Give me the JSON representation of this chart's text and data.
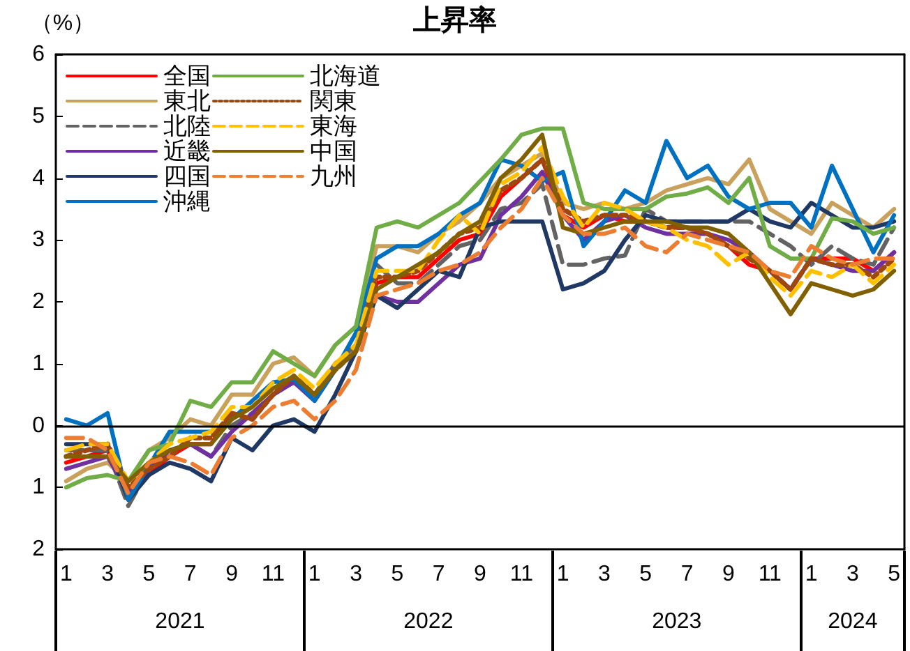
{
  "chart_data": {
    "type": "line",
    "title": "上昇率",
    "ylabel": "（%）",
    "categories": [
      "1",
      null,
      "3",
      null,
      "5",
      null,
      "7",
      null,
      "9",
      null,
      "11",
      null,
      "1",
      null,
      "3",
      null,
      "5",
      null,
      "7",
      null,
      "9",
      null,
      "11",
      null,
      "1",
      null,
      "3",
      null,
      "5",
      null,
      "7",
      null,
      "9",
      null,
      "11",
      null,
      "1",
      null,
      "3",
      null,
      "5"
    ],
    "annotations": [
      "2021",
      "2022",
      "2023",
      "2024"
    ],
    "ylim": [
      -2,
      6
    ],
    "yticks": [
      {
        "value": -2,
        "label": "2"
      },
      {
        "value": -1,
        "label": "1"
      },
      0,
      1,
      2,
      3,
      4,
      5,
      6
    ],
    "grid": false,
    "legend": "top left",
    "marker": "none",
    "ref_lines": [
      {
        "axis": "y",
        "value": 0
      }
    ],
    "series": [
      {
        "name": "全国",
        "color": "#ff0000",
        "line_style": "solid",
        "values": [
          -0.6,
          -0.5,
          -0.4,
          -1.1,
          -0.8,
          -0.5,
          -0.3,
          -0.3,
          0.2,
          0.1,
          0.5,
          0.8,
          0.5,
          0.9,
          1.2,
          2.3,
          2.4,
          2.4,
          2.7,
          3.0,
          3.1,
          3.7,
          4.0,
          4.3,
          3.4,
          3.2,
          3.4,
          3.3,
          3.3,
          3.2,
          3.2,
          3.1,
          2.9,
          2.6,
          2.5,
          2.2,
          2.7,
          2.7,
          2.7,
          2.5,
          2.8
        ]
      },
      {
        "name": "東北",
        "color": "#c9a15c",
        "line_style": "solid",
        "values": [
          -0.9,
          -0.7,
          -0.6,
          -0.9,
          -0.4,
          -0.2,
          0.1,
          0.0,
          0.5,
          0.5,
          1.0,
          1.1,
          0.8,
          1.3,
          1.6,
          2.9,
          2.9,
          2.8,
          3.1,
          3.3,
          3.6,
          4.0,
          4.2,
          4.4,
          3.6,
          3.5,
          3.6,
          3.5,
          3.6,
          3.8,
          3.9,
          4.0,
          3.9,
          4.3,
          3.5,
          3.3,
          3.1,
          3.6,
          3.4,
          3.2,
          3.5
        ]
      },
      {
        "name": "北陸",
        "color": "#636363",
        "line_style": "dashed",
        "values": [
          -0.4,
          -0.4,
          -0.4,
          -1.3,
          -0.7,
          -0.4,
          -0.3,
          -0.5,
          0.0,
          0.2,
          0.5,
          0.7,
          0.5,
          1.0,
          1.3,
          2.6,
          2.3,
          2.3,
          2.6,
          2.9,
          3.0,
          3.5,
          3.6,
          3.9,
          2.6,
          2.6,
          2.7,
          2.75,
          3.5,
          3.3,
          3.3,
          3.3,
          3.3,
          3.3,
          3.1,
          2.9,
          2.6,
          2.9,
          2.7,
          2.6,
          3.2
        ]
      },
      {
        "name": "近畿",
        "color": "#7030a0",
        "line_style": "solid",
        "values": [
          -0.7,
          -0.6,
          -0.5,
          -1.1,
          -0.7,
          -0.4,
          -0.3,
          -0.5,
          -0.1,
          0.2,
          0.5,
          0.7,
          0.4,
          0.9,
          1.2,
          2.1,
          2.0,
          2.0,
          2.3,
          2.6,
          2.7,
          3.4,
          3.7,
          4.1,
          3.4,
          3.0,
          3.3,
          3.4,
          3.2,
          3.1,
          3.1,
          3.1,
          3.0,
          2.8,
          2.5,
          2.2,
          2.7,
          2.6,
          2.5,
          2.5,
          2.8
        ]
      },
      {
        "name": "四国",
        "color": "#1f3864",
        "line_style": "solid",
        "values": [
          -0.3,
          -0.3,
          -0.3,
          -1.2,
          -0.8,
          -0.6,
          -0.7,
          -0.9,
          -0.2,
          -0.4,
          0.0,
          0.1,
          -0.1,
          0.5,
          1.2,
          2.1,
          1.9,
          2.2,
          2.5,
          2.4,
          3.2,
          3.3,
          3.3,
          3.3,
          2.2,
          2.3,
          2.5,
          3.0,
          3.4,
          3.3,
          3.3,
          3.3,
          3.3,
          3.5,
          3.3,
          3.2,
          3.6,
          3.4,
          3.2,
          3.2,
          3.3
        ]
      },
      {
        "name": "沖縄",
        "color": "#0070c0",
        "line_style": "solid",
        "values": [
          0.1,
          0.0,
          0.2,
          -1.2,
          -0.65,
          -0.1,
          -0.1,
          -0.1,
          0.1,
          0.4,
          0.7,
          0.75,
          0.4,
          0.9,
          1.5,
          2.7,
          2.9,
          2.9,
          3.1,
          3.4,
          3.6,
          4.3,
          4.2,
          3.95,
          4.1,
          2.9,
          3.3,
          3.8,
          3.6,
          4.6,
          4.0,
          4.2,
          3.7,
          3.5,
          3.6,
          3.6,
          3.2,
          4.2,
          3.5,
          2.8,
          3.4
        ]
      },
      {
        "name": "北海道",
        "color": "#70ad47",
        "line_style": "solid",
        "values": [
          -1.0,
          -0.85,
          -0.8,
          -0.9,
          -0.4,
          -0.3,
          0.4,
          0.3,
          0.7,
          0.7,
          1.2,
          1.0,
          0.8,
          1.3,
          1.6,
          3.2,
          3.3,
          3.2,
          3.4,
          3.6,
          3.95,
          4.3,
          4.7,
          4.8,
          4.8,
          3.6,
          3.5,
          3.5,
          3.5,
          3.7,
          3.75,
          3.85,
          3.6,
          4.0,
          2.9,
          2.7,
          2.7,
          3.35,
          3.3,
          3.1,
          3.2
        ]
      },
      {
        "name": "関東",
        "color": "#9e480e",
        "line_style": "dotted",
        "values": [
          -0.5,
          -0.4,
          -0.3,
          -1.0,
          -0.7,
          -0.5,
          -0.2,
          -0.2,
          0.2,
          0.1,
          0.5,
          0.8,
          0.5,
          0.9,
          1.2,
          2.4,
          2.4,
          2.5,
          2.8,
          3.1,
          3.2,
          3.8,
          4.0,
          4.3,
          3.5,
          3.3,
          3.4,
          3.4,
          3.3,
          3.2,
          3.2,
          3.1,
          2.9,
          2.7,
          2.5,
          2.2,
          2.7,
          2.6,
          2.6,
          2.4,
          2.7
        ]
      },
      {
        "name": "東海",
        "color": "#ffc000",
        "line_style": "dashed",
        "values": [
          -0.4,
          -0.3,
          -0.3,
          -0.9,
          -0.6,
          -0.3,
          -0.2,
          -0.1,
          0.3,
          0.3,
          0.7,
          0.9,
          0.6,
          1.0,
          1.3,
          2.5,
          2.5,
          2.5,
          3.0,
          3.4,
          3.1,
          3.9,
          4.1,
          4.5,
          3.7,
          3.2,
          3.6,
          3.5,
          3.3,
          3.2,
          3.0,
          2.9,
          2.6,
          2.8,
          2.4,
          2.1,
          2.5,
          2.4,
          2.6,
          2.3,
          2.6
        ]
      },
      {
        "name": "中国",
        "color": "#806000",
        "line_style": "solid",
        "values": [
          -0.5,
          -0.5,
          -0.5,
          -0.9,
          -0.6,
          -0.4,
          -0.3,
          -0.3,
          0.1,
          0.3,
          0.6,
          0.8,
          0.5,
          0.9,
          1.2,
          2.2,
          2.4,
          2.6,
          2.8,
          3.1,
          3.3,
          4.0,
          4.3,
          4.7,
          3.2,
          3.1,
          3.2,
          3.3,
          3.3,
          3.3,
          3.2,
          3.2,
          3.1,
          2.8,
          2.3,
          1.8,
          2.3,
          2.2,
          2.1,
          2.2,
          2.5
        ]
      },
      {
        "name": "九州",
        "color": "#ed7d31",
        "line_style": "dashed",
        "values": [
          -0.2,
          -0.2,
          -0.4,
          -1.1,
          -0.6,
          -0.5,
          -0.6,
          -0.8,
          -0.2,
          0.0,
          0.3,
          0.4,
          0.1,
          0.4,
          0.9,
          2.1,
          2.2,
          2.3,
          2.5,
          2.6,
          2.8,
          3.2,
          3.5,
          4.0,
          3.4,
          3.1,
          3.1,
          3.2,
          2.9,
          2.8,
          3.1,
          3.0,
          2.9,
          2.8,
          2.5,
          2.4,
          2.9,
          2.7,
          2.6,
          2.7,
          2.7
        ]
      }
    ]
  }
}
